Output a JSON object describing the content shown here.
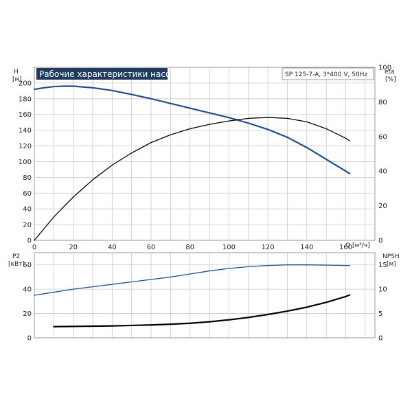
{
  "chart_data": [
    {
      "type": "line",
      "title": "Рабочие характеристики насоса",
      "model_label": "SP 125-7-A, 3*400 V, 50Hz",
      "xlabel": "Q [м³/ч]",
      "xlim": [
        0,
        175
      ],
      "x_ticks": [
        0,
        20,
        40,
        60,
        80,
        100,
        120,
        140,
        160
      ],
      "y_left": {
        "label": "H",
        "unit": "[м]",
        "lim": [
          0,
          220
        ],
        "ticks": [
          0,
          20,
          40,
          60,
          80,
          100,
          120,
          140,
          160,
          180,
          200
        ]
      },
      "y_right": {
        "label": "eta",
        "unit": "[%]",
        "lim": [
          0,
          100
        ],
        "ticks": [
          0,
          20,
          40,
          60,
          80,
          100
        ]
      },
      "grid": true,
      "series": [
        {
          "axis": "left",
          "color": "#1f4e8c",
          "x": [
            0,
            5,
            10,
            15,
            20,
            30,
            40,
            50,
            60,
            70,
            80,
            90,
            100,
            110,
            120,
            130,
            140,
            150,
            160,
            162
          ],
          "y": [
            192,
            194,
            195.5,
            196,
            196,
            194,
            190.5,
            185.5,
            180,
            174,
            168,
            162,
            156,
            149,
            141,
            131,
            118,
            103,
            88,
            85
          ]
        },
        {
          "axis": "right",
          "color": "#000000",
          "x": [
            0,
            10,
            20,
            30,
            40,
            50,
            60,
            70,
            80,
            90,
            100,
            110,
            120,
            130,
            140,
            150,
            160,
            162
          ],
          "y": [
            0,
            13.5,
            25,
            35,
            43.5,
            50.5,
            56.5,
            61,
            64.5,
            67,
            69,
            70.5,
            71,
            70.5,
            68.5,
            64.5,
            59,
            57.5
          ]
        }
      ]
    },
    {
      "type": "line",
      "xlim": [
        0,
        175
      ],
      "y_left": {
        "label": "P2",
        "unit": "[кВт]",
        "lim": [
          0,
          70
        ],
        "ticks": [
          0,
          20,
          40,
          60
        ]
      },
      "y_right": {
        "label": "NPSH",
        "unit": "[м]",
        "lim": [
          0,
          17.5
        ],
        "ticks": [
          0,
          5,
          10,
          15
        ]
      },
      "grid": true,
      "series": [
        {
          "axis": "left",
          "color": "#1f4e8c",
          "x": [
            0,
            10,
            20,
            30,
            40,
            50,
            60,
            70,
            80,
            90,
            100,
            110,
            120,
            130,
            140,
            150,
            160,
            162
          ],
          "y": [
            35,
            37.5,
            40,
            42,
            44,
            46,
            48,
            50,
            52.5,
            55,
            57,
            58.5,
            59.5,
            60,
            60,
            59.8,
            59.5,
            59.5
          ]
        },
        {
          "axis": "right",
          "color": "#000000",
          "x": [
            10,
            20,
            30,
            40,
            50,
            60,
            70,
            80,
            90,
            100,
            110,
            120,
            130,
            140,
            150,
            160,
            162
          ],
          "y": [
            2.3,
            2.35,
            2.4,
            2.45,
            2.55,
            2.65,
            2.8,
            3.0,
            3.3,
            3.7,
            4.2,
            4.8,
            5.5,
            6.3,
            7.3,
            8.5,
            8.8
          ]
        }
      ]
    }
  ]
}
